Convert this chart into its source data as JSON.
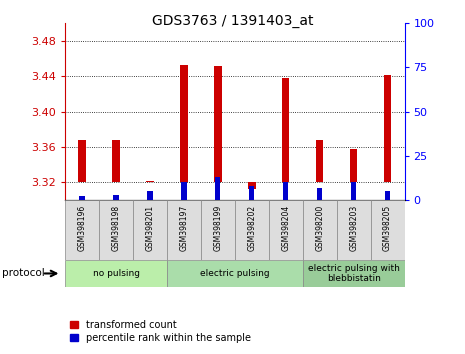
{
  "title": "GDS3763 / 1391403_at",
  "samples": [
    "GSM398196",
    "GSM398198",
    "GSM398201",
    "GSM398197",
    "GSM398199",
    "GSM398202",
    "GSM398204",
    "GSM398200",
    "GSM398203",
    "GSM398205"
  ],
  "red_values": [
    3.368,
    3.368,
    3.321,
    3.453,
    3.451,
    3.312,
    3.438,
    3.368,
    3.358,
    3.441
  ],
  "blue_values": [
    2,
    3,
    5,
    10,
    13,
    8,
    10,
    7,
    10,
    5
  ],
  "ylim_left": [
    3.3,
    3.5
  ],
  "ylim_right": [
    0,
    100
  ],
  "yticks_left": [
    3.32,
    3.36,
    3.4,
    3.44,
    3.48
  ],
  "yticks_right": [
    0,
    25,
    50,
    75,
    100
  ],
  "groups": [
    {
      "label": "no pulsing",
      "start": 0,
      "end": 3,
      "color": "#bbeeaa"
    },
    {
      "label": "electric pulsing",
      "start": 3,
      "end": 7,
      "color": "#aaddaa"
    },
    {
      "label": "electric pulsing with\nblebbistatin",
      "start": 7,
      "end": 10,
      "color": "#99cc99"
    }
  ],
  "bar_bottom": 3.32,
  "red_color": "#cc0000",
  "blue_color": "#0000cc",
  "protocol_label": "protocol"
}
